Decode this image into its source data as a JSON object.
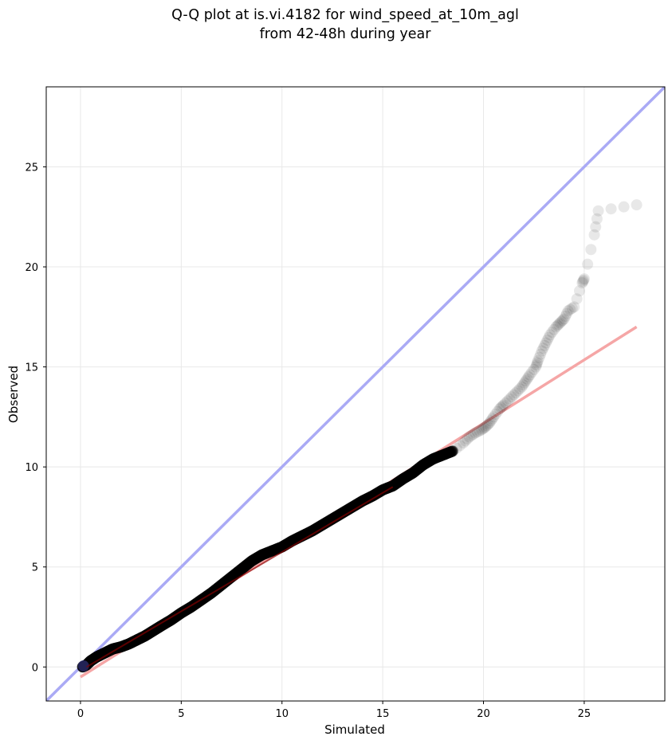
{
  "chart_data": {
    "type": "scatter",
    "title_lines": [
      "Q-Q plot at is.vi.4182 for wind_speed_at_10m_agl",
      "from 42-48h during year"
    ],
    "xlabel": "Simulated",
    "ylabel": "Observed",
    "xlim": [
      -1.7,
      29.0
    ],
    "ylim": [
      -1.7,
      29.0
    ],
    "x_ticks": [
      0,
      5,
      10,
      15,
      20,
      25
    ],
    "y_ticks": [
      0,
      5,
      10,
      15,
      20,
      25
    ],
    "grid": true,
    "colors": {
      "points": "#000000",
      "identity_line": "#aaaaf5",
      "fit_line": "#f5a6a6",
      "dark_fit_overlay": "#8b0000"
    },
    "identity_line": {
      "x": [
        -1.7,
        29.0
      ],
      "y": [
        -1.7,
        29.0
      ]
    },
    "fit_line": {
      "x": [
        0.0,
        27.6
      ],
      "y": [
        -0.5,
        17.0
      ]
    },
    "dense_fit_overlay": {
      "x": [
        0.3,
        15.5
      ],
      "y": [
        0.0,
        9.0
      ]
    },
    "series": [
      {
        "x": [
          0.1,
          0.3,
          0.5,
          0.8,
          1.0,
          1.3,
          1.6,
          2.0,
          2.4,
          2.8,
          3.2,
          3.6,
          4.0,
          4.5,
          5.0,
          5.5,
          6.0,
          6.5,
          7.0,
          7.5,
          8.0,
          8.5,
          9.0,
          9.5,
          10.0,
          10.5,
          11.0,
          11.5,
          12.0,
          12.5,
          13.0,
          13.5,
          14.0,
          14.5,
          15.0,
          15.5,
          16.0,
          16.5,
          17.0,
          17.5,
          18.0,
          18.5,
          19.0,
          19.3,
          19.6,
          19.9,
          20.1,
          20.3,
          20.5,
          20.8,
          21.0,
          21.3,
          21.6,
          21.9,
          22.1,
          22.3,
          22.6,
          22.7,
          22.9,
          23.1,
          23.3,
          23.6,
          23.8,
          24.0,
          24.2,
          24.5,
          24.9,
          25.0,
          25.5,
          25.7,
          27.6
        ],
        "y": [
          0.0,
          0.1,
          0.3,
          0.5,
          0.6,
          0.75,
          0.9,
          1.0,
          1.15,
          1.35,
          1.55,
          1.8,
          2.05,
          2.35,
          2.7,
          3.0,
          3.35,
          3.7,
          4.1,
          4.5,
          4.9,
          5.3,
          5.6,
          5.8,
          6.0,
          6.3,
          6.55,
          6.8,
          7.1,
          7.4,
          7.7,
          8.0,
          8.3,
          8.55,
          8.85,
          9.05,
          9.4,
          9.7,
          10.1,
          10.4,
          10.6,
          10.8,
          11.2,
          11.5,
          11.7,
          11.85,
          12.0,
          12.2,
          12.5,
          12.9,
          13.1,
          13.4,
          13.7,
          14.0,
          14.3,
          14.6,
          15.0,
          15.3,
          15.8,
          16.2,
          16.6,
          17.0,
          17.2,
          17.4,
          17.8,
          18.0,
          19.2,
          19.4,
          21.6,
          22.8,
          23.1
        ]
      }
    ]
  }
}
